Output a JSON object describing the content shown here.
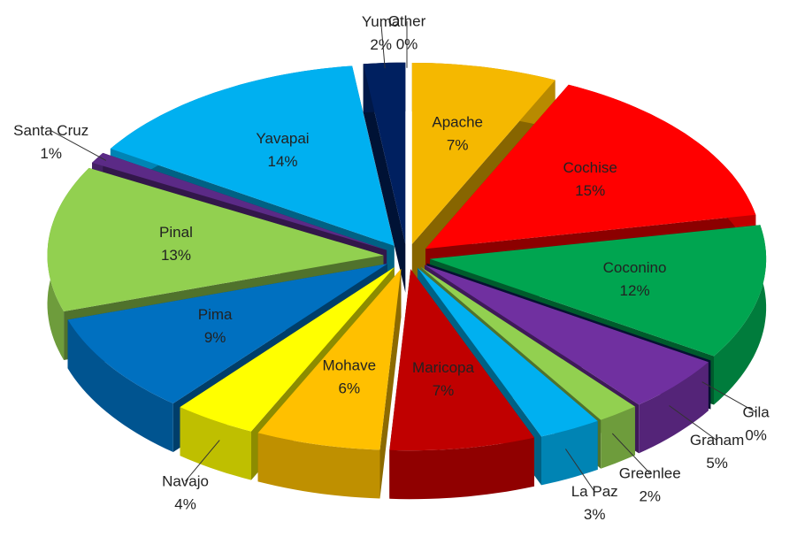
{
  "chart_data": {
    "type": "pie",
    "categories": [
      "Apache",
      "Cochise",
      "Coconino",
      "Gila",
      "Graham",
      "Greenlee",
      "La Paz",
      "Maricopa",
      "Mohave",
      "Navajo",
      "Pima",
      "Pinal",
      "Santa Cruz",
      "Yavapai",
      "Yuma",
      "Other"
    ],
    "values": [
      7,
      15,
      12,
      0,
      5,
      2,
      3,
      7,
      6,
      4,
      9,
      13,
      1,
      14,
      2,
      0
    ],
    "value_labels": [
      "7%",
      "15%",
      "12%",
      "0%",
      "5%",
      "2%",
      "3%",
      "7%",
      "6%",
      "4%",
      "9%",
      "13%",
      "1%",
      "14%",
      "2%",
      "0%"
    ],
    "colors": [
      "#f5b800",
      "#ff0000",
      "#00a550",
      "#0a1e5a",
      "#7030a0",
      "#92d050",
      "#00b0f0",
      "#c00000",
      "#ffc000",
      "#ffff00",
      "#0070c0",
      "#92d050",
      "#5b2a86",
      "#00b0f0",
      "#002060",
      "#7f7f7f"
    ]
  }
}
